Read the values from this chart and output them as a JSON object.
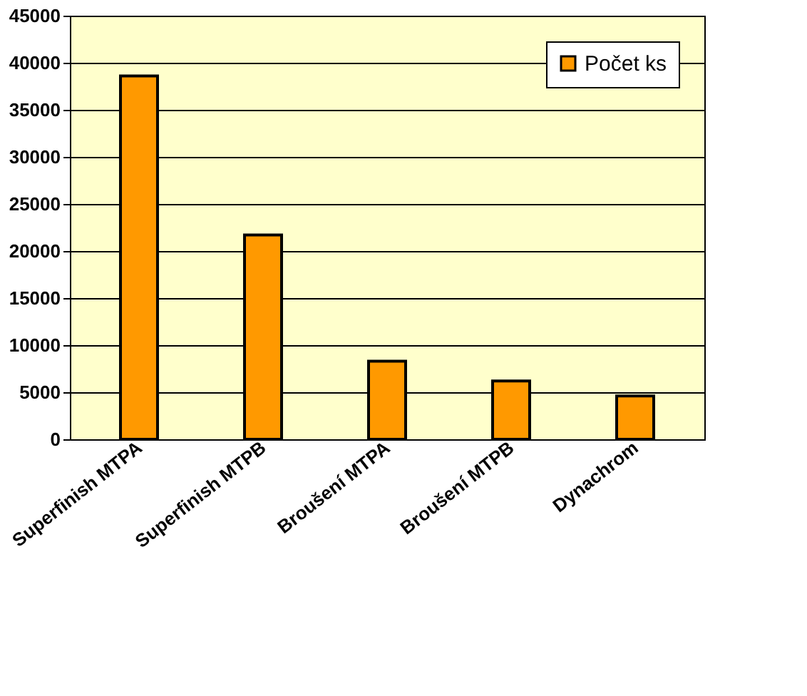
{
  "chart_data": {
    "type": "bar",
    "categories": [
      "Superfinish MTPA",
      "Superfinish MTPB",
      "Broušení MTPA",
      "Broušení MTPB",
      "Dynachrom"
    ],
    "series": [
      {
        "name": "Počet ks",
        "color": "#ff9900",
        "values": [
          38600,
          21700,
          8300,
          6200,
          4600
        ]
      }
    ],
    "ylim": [
      0,
      45000
    ],
    "yticks": [
      0,
      5000,
      10000,
      15000,
      20000,
      25000,
      30000,
      35000,
      40000,
      45000
    ],
    "grid": "y",
    "legend": "top right"
  }
}
